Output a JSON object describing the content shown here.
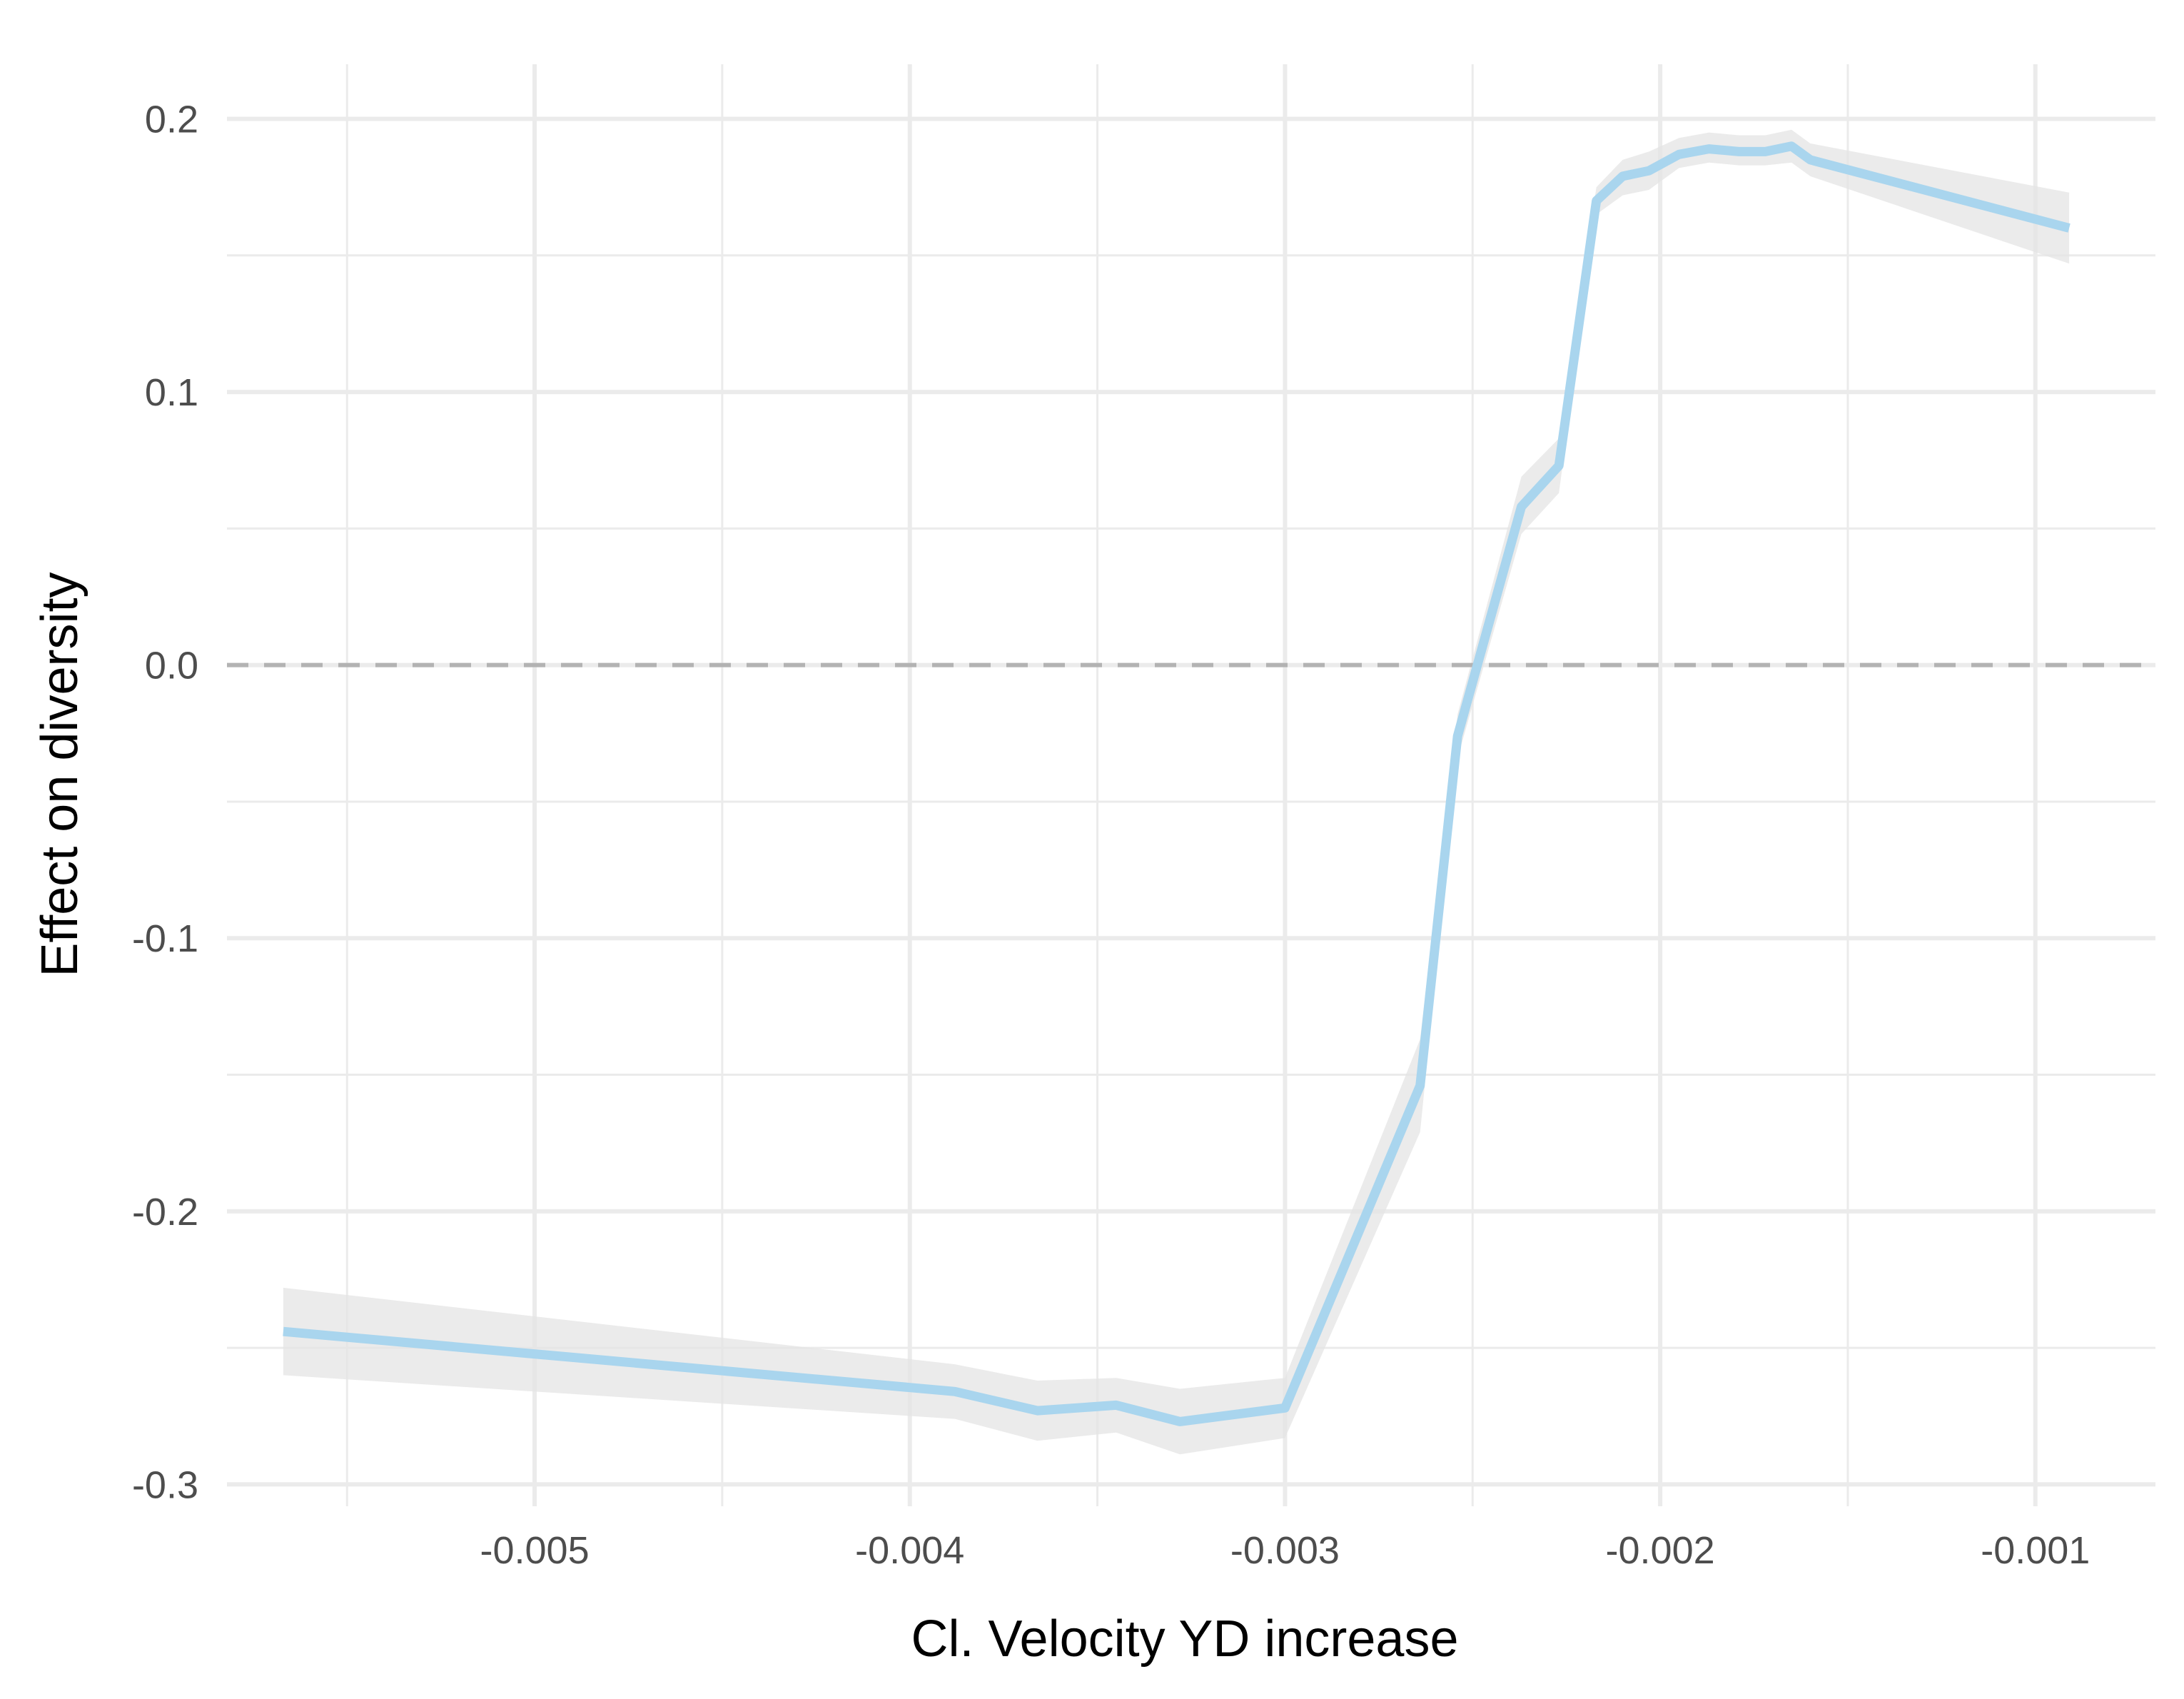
{
  "chart_data": {
    "type": "line",
    "title": "",
    "xlabel": "Cl. Velocity YD increase",
    "ylabel": "Effect on diversity",
    "xlim": [
      -0.00582,
      -0.00068
    ],
    "ylim": [
      -0.308,
      0.22
    ],
    "x_ticks": [
      -0.005,
      -0.004,
      -0.003,
      -0.002,
      -0.001
    ],
    "x_tick_labels": [
      "-0.005",
      "-0.004",
      "-0.003",
      "-0.002",
      "-0.001"
    ],
    "y_ticks": [
      0.2,
      0.1,
      0.0,
      -0.1,
      -0.2,
      -0.3
    ],
    "y_tick_labels": [
      "0.2",
      "0.1",
      "0.0",
      "-0.1",
      "-0.2",
      "-0.3"
    ],
    "x_minor_ticks": [
      -0.0055,
      -0.0045,
      -0.0035,
      -0.0025,
      -0.0015
    ],
    "y_minor_ticks": [
      0.15,
      0.05,
      -0.05,
      -0.15,
      -0.25
    ],
    "grid": true,
    "reference_line": {
      "y": 0.0,
      "style": "dashed",
      "color": "#b3b3b3"
    },
    "colors": {
      "line": "#a9d5ee",
      "ribbon": "#e4e4e4",
      "grid": "#ebebeb"
    },
    "series": [
      {
        "x": [
          -0.00567,
          -0.00388,
          -0.00366,
          -0.00345,
          -0.00328,
          -0.003,
          -0.00264,
          -0.00254,
          -0.00237,
          -0.00227,
          -0.00217,
          -0.0021,
          -0.00203,
          -0.00195,
          -0.00187,
          -0.00179,
          -0.00172,
          -0.00165,
          -0.0016,
          -0.00091
        ],
        "y": [
          -0.244,
          -0.266,
          -0.273,
          -0.271,
          -0.277,
          -0.272,
          -0.154,
          -0.026,
          0.058,
          0.073,
          0.17,
          0.179,
          0.181,
          0.187,
          0.189,
          0.188,
          0.188,
          0.19,
          0.185,
          0.16
        ],
        "lower": [
          -0.26,
          -0.276,
          -0.284,
          -0.281,
          -0.289,
          -0.283,
          -0.171,
          -0.034,
          0.048,
          0.063,
          0.165,
          0.172,
          0.174,
          0.182,
          0.184,
          0.183,
          0.183,
          0.184,
          0.179,
          0.147
        ],
        "upper": [
          -0.228,
          -0.256,
          -0.262,
          -0.261,
          -0.265,
          -0.261,
          -0.137,
          -0.018,
          0.069,
          0.083,
          0.175,
          0.185,
          0.188,
          0.193,
          0.195,
          0.194,
          0.194,
          0.196,
          0.191,
          0.173
        ]
      }
    ]
  }
}
